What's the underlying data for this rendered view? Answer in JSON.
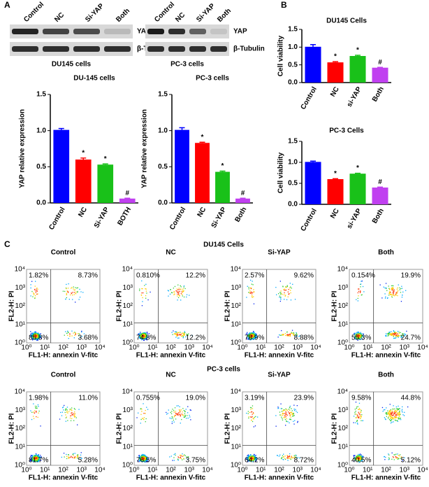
{
  "panels": [
    "A",
    "B",
    "C"
  ],
  "blots": [
    {
      "lanes": [
        "Control",
        "NC",
        "Si-YAP",
        "Both"
      ],
      "rows": [
        "YAP",
        "β-Tubulin"
      ],
      "caption": "DU145 cells"
    },
    {
      "lanes": [
        "Control",
        "NC",
        "Si-YAP",
        "Both"
      ],
      "rows": [
        "YAP",
        "β-Tubulin"
      ],
      "caption": "PC-3 cells"
    }
  ],
  "chart_data": [
    {
      "type": "bar",
      "title": "DU-145 cells",
      "ylabel": "YAP relative expression",
      "categories": [
        "Control",
        "NC",
        "Si-YAP",
        "BOTH"
      ],
      "values": [
        1.01,
        0.6,
        0.53,
        0.06
      ],
      "errors": [
        0.02,
        0.02,
        0.01,
        0.005
      ],
      "annotations": [
        null,
        "*",
        "*",
        "#"
      ],
      "colors": [
        "#0000ff",
        "#ff0000",
        "#19c119",
        "#c040f0"
      ],
      "ylim": [
        0,
        1.5
      ],
      "yticks": [
        {
          "value": 0,
          "label": "0.0"
        },
        {
          "value": 0.5,
          "label": "0.5"
        },
        {
          "value": 1,
          "label": "1.0"
        },
        {
          "value": 1.5,
          "label": "1.5"
        }
      ]
    },
    {
      "type": "bar",
      "title": "PC-3 cells",
      "ylabel": "YAP relative expression",
      "categories": [
        "Control",
        "NC",
        "Si-YAP",
        "Both"
      ],
      "values": [
        1.01,
        0.83,
        0.43,
        0.06
      ],
      "errors": [
        0.03,
        0.01,
        0.01,
        0.005
      ],
      "annotations": [
        null,
        "*",
        "*",
        "#"
      ],
      "colors": [
        "#0000ff",
        "#ff0000",
        "#19c119",
        "#c040f0"
      ],
      "ylim": [
        0,
        1.5
      ],
      "yticks": [
        {
          "value": 0,
          "label": "0.0"
        },
        {
          "value": 0.5,
          "label": "0.5"
        },
        {
          "value": 1,
          "label": "1.0"
        },
        {
          "value": 1.5,
          "label": "1.5"
        }
      ]
    },
    {
      "type": "bar",
      "title": "DU145  Cells",
      "ylabel": "Cell viability",
      "categories": [
        "Control",
        "NC",
        "si-YAP",
        "Both"
      ],
      "values": [
        1.01,
        0.57,
        0.75,
        0.42
      ],
      "errors": [
        0.06,
        0.02,
        0.02,
        0.01
      ],
      "annotations": [
        null,
        "*",
        "*",
        "#"
      ],
      "colors": [
        "#0000ff",
        "#ff0000",
        "#19c119",
        "#c040f0"
      ],
      "ylim": [
        0,
        1.5
      ],
      "yticks": [
        {
          "value": 0,
          "label": "0.0"
        },
        {
          "value": 0.5,
          "label": "0.5"
        },
        {
          "value": 1,
          "label": "1.0"
        },
        {
          "value": 1.5,
          "label": "1.5"
        }
      ]
    },
    {
      "type": "bar",
      "title": "PC-3 Cells",
      "ylabel": "Cell viability",
      "categories": [
        "Control",
        "NC",
        "si-YAP",
        "Both"
      ],
      "values": [
        1.01,
        0.6,
        0.73,
        0.4
      ],
      "errors": [
        0.02,
        0.01,
        0.01,
        0.01
      ],
      "annotations": [
        null,
        "*",
        "*",
        "#"
      ],
      "colors": [
        "#0000ff",
        "#ff0000",
        "#19c119",
        "#c040f0"
      ],
      "ylim": [
        0,
        1.5
      ],
      "yticks": [
        {
          "value": 0,
          "label": "0.0"
        },
        {
          "value": 0.5,
          "label": "0.5"
        },
        {
          "value": 1,
          "label": "1.0"
        },
        {
          "value": 1.5,
          "label": "1.5"
        }
      ]
    }
  ],
  "flow": {
    "xlabel": "FL1-H: annexin V-fitc",
    "ylabel": "FL2-H: PI",
    "ticks": [
      "10⁰",
      "10¹",
      "10²",
      "10³",
      "10⁴"
    ],
    "groups": [
      {
        "title": "DU145 Cells",
        "samples": [
          {
            "name": "Control",
            "quadrants": [
              "1.82%",
              "8.73%",
              "85.8%",
              "3.68%"
            ]
          },
          {
            "name": "NC",
            "quadrants": [
              "0.810%",
              "12.2%",
              "74.8%",
              "12.2%"
            ]
          },
          {
            "name": "Si-YAP",
            "quadrants": [
              "2.57%",
              "9.62%",
              "78.9%",
              "8.88%"
            ]
          },
          {
            "name": "Both",
            "quadrants": [
              "0.154%",
              "19.9%",
              "55.3%",
              "24.7%"
            ]
          }
        ]
      },
      {
        "title": "PC-3 cells",
        "samples": [
          {
            "name": "Control",
            "quadrants": [
              "1.98%",
              "11.0%",
              "81.7%",
              "5.28%"
            ]
          },
          {
            "name": "NC",
            "quadrants": [
              "0.755%",
              "19.0%",
              "76.5%",
              "3.75%"
            ]
          },
          {
            "name": "Si-YAP",
            "quadrants": [
              "3.19%",
              "23.9%",
              "64.2%",
              "8.72%"
            ]
          },
          {
            "name": "Both",
            "quadrants": [
              "9.58%",
              "44.8%",
              "40.5%",
              "5.12%"
            ]
          }
        ]
      }
    ]
  }
}
